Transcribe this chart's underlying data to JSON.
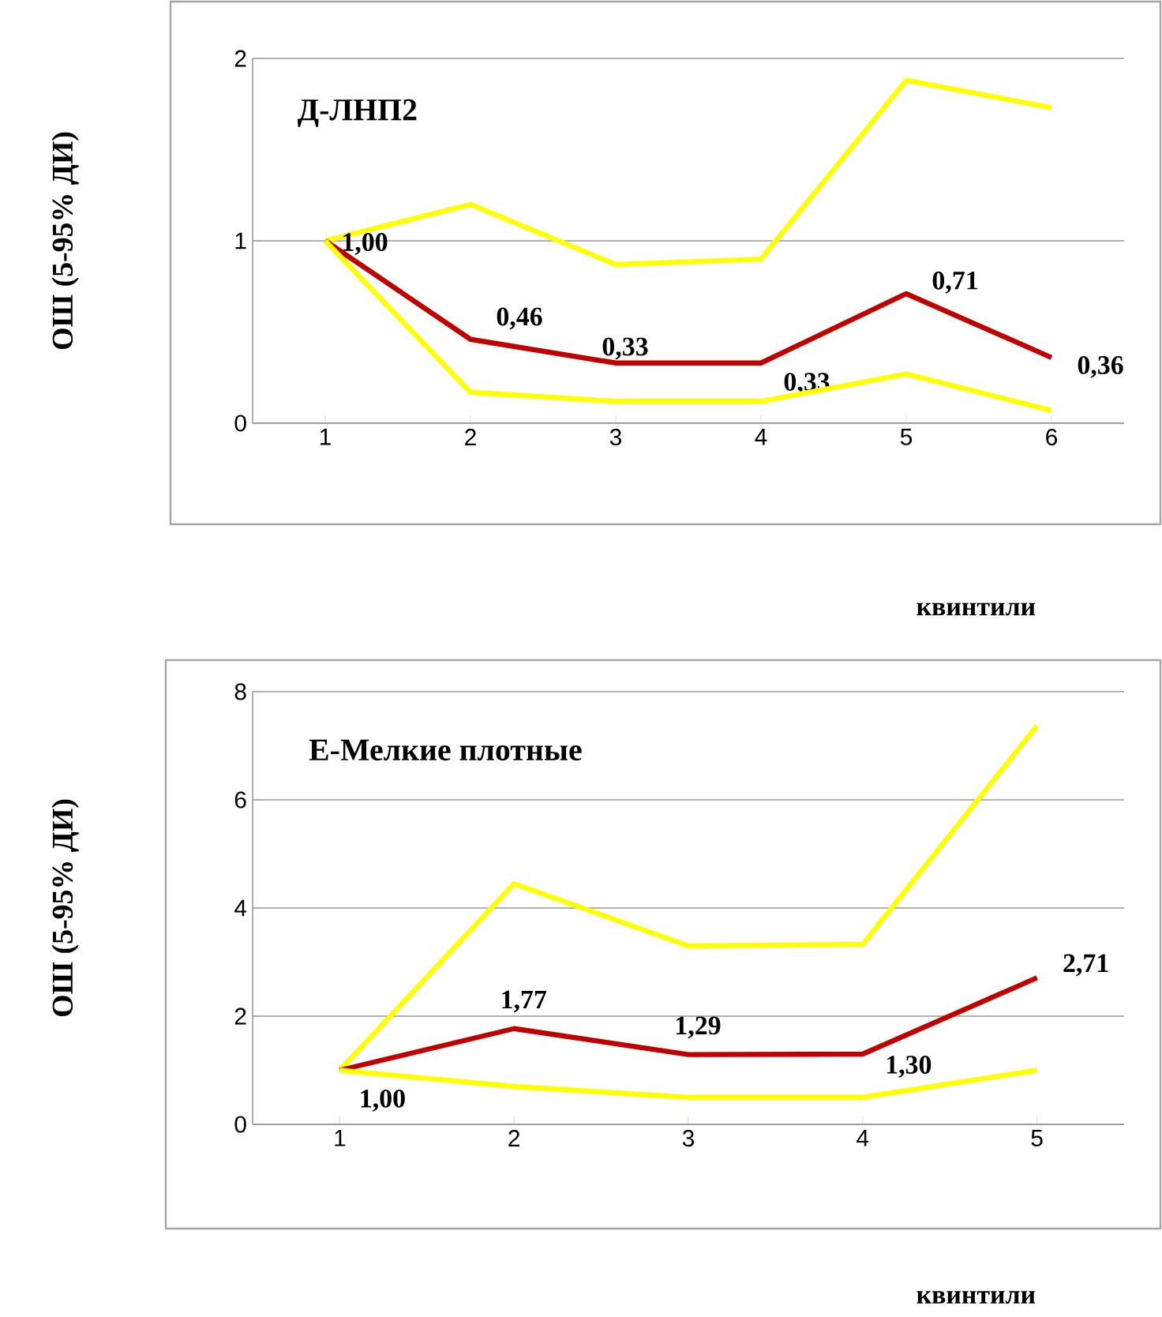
{
  "chart_data": [
    {
      "type": "line",
      "title": "Д-ЛНП2",
      "ylabel": "ОШ (5-95% ДИ)",
      "xlabel": "квинтили",
      "categories": [
        "1",
        "2",
        "3",
        "4",
        "5",
        "6"
      ],
      "series": [
        {
          "color": "#ffff00",
          "values": [
            1,
            1.2,
            0.87,
            0.9,
            1.88,
            1.73
          ]
        },
        {
          "color": "#c00000",
          "values": [
            1,
            0.46,
            0.33,
            0.33,
            0.71,
            0.36
          ],
          "value_labels": [
            "1,00",
            "0,46",
            "0,33",
            "0,33",
            "0,71",
            "0,36"
          ]
        },
        {
          "color": "#ffff00",
          "values": [
            1,
            0.17,
            0.12,
            0.12,
            0.27,
            0.07
          ]
        }
      ],
      "ylim": [
        0,
        2
      ],
      "yticks": [
        0,
        1,
        2
      ],
      "grid": "y",
      "marker": "none",
      "line_style": "solid"
    },
    {
      "type": "line",
      "title": "Е-Мелкие плотные",
      "ylabel": "ОШ (5-95% ДИ)",
      "xlabel": "квинтили",
      "categories": [
        "1",
        "2",
        "3",
        "4",
        "5"
      ],
      "series": [
        {
          "color": "#ffff00",
          "values": [
            1,
            4.45,
            3.3,
            3.33,
            7.37
          ]
        },
        {
          "color": "#c00000",
          "values": [
            1,
            1.77,
            1.29,
            1.3,
            2.71
          ],
          "value_labels": [
            "1,00",
            "1,77",
            "1,29",
            "1,30",
            "2,71"
          ]
        },
        {
          "color": "#ffff00",
          "values": [
            1,
            0.7,
            0.5,
            0.5,
            1.0
          ]
        }
      ],
      "ylim": [
        0,
        8
      ],
      "yticks": [
        0,
        2,
        4,
        6,
        8
      ],
      "grid": "y",
      "marker": "none",
      "line_style": "solid"
    }
  ]
}
